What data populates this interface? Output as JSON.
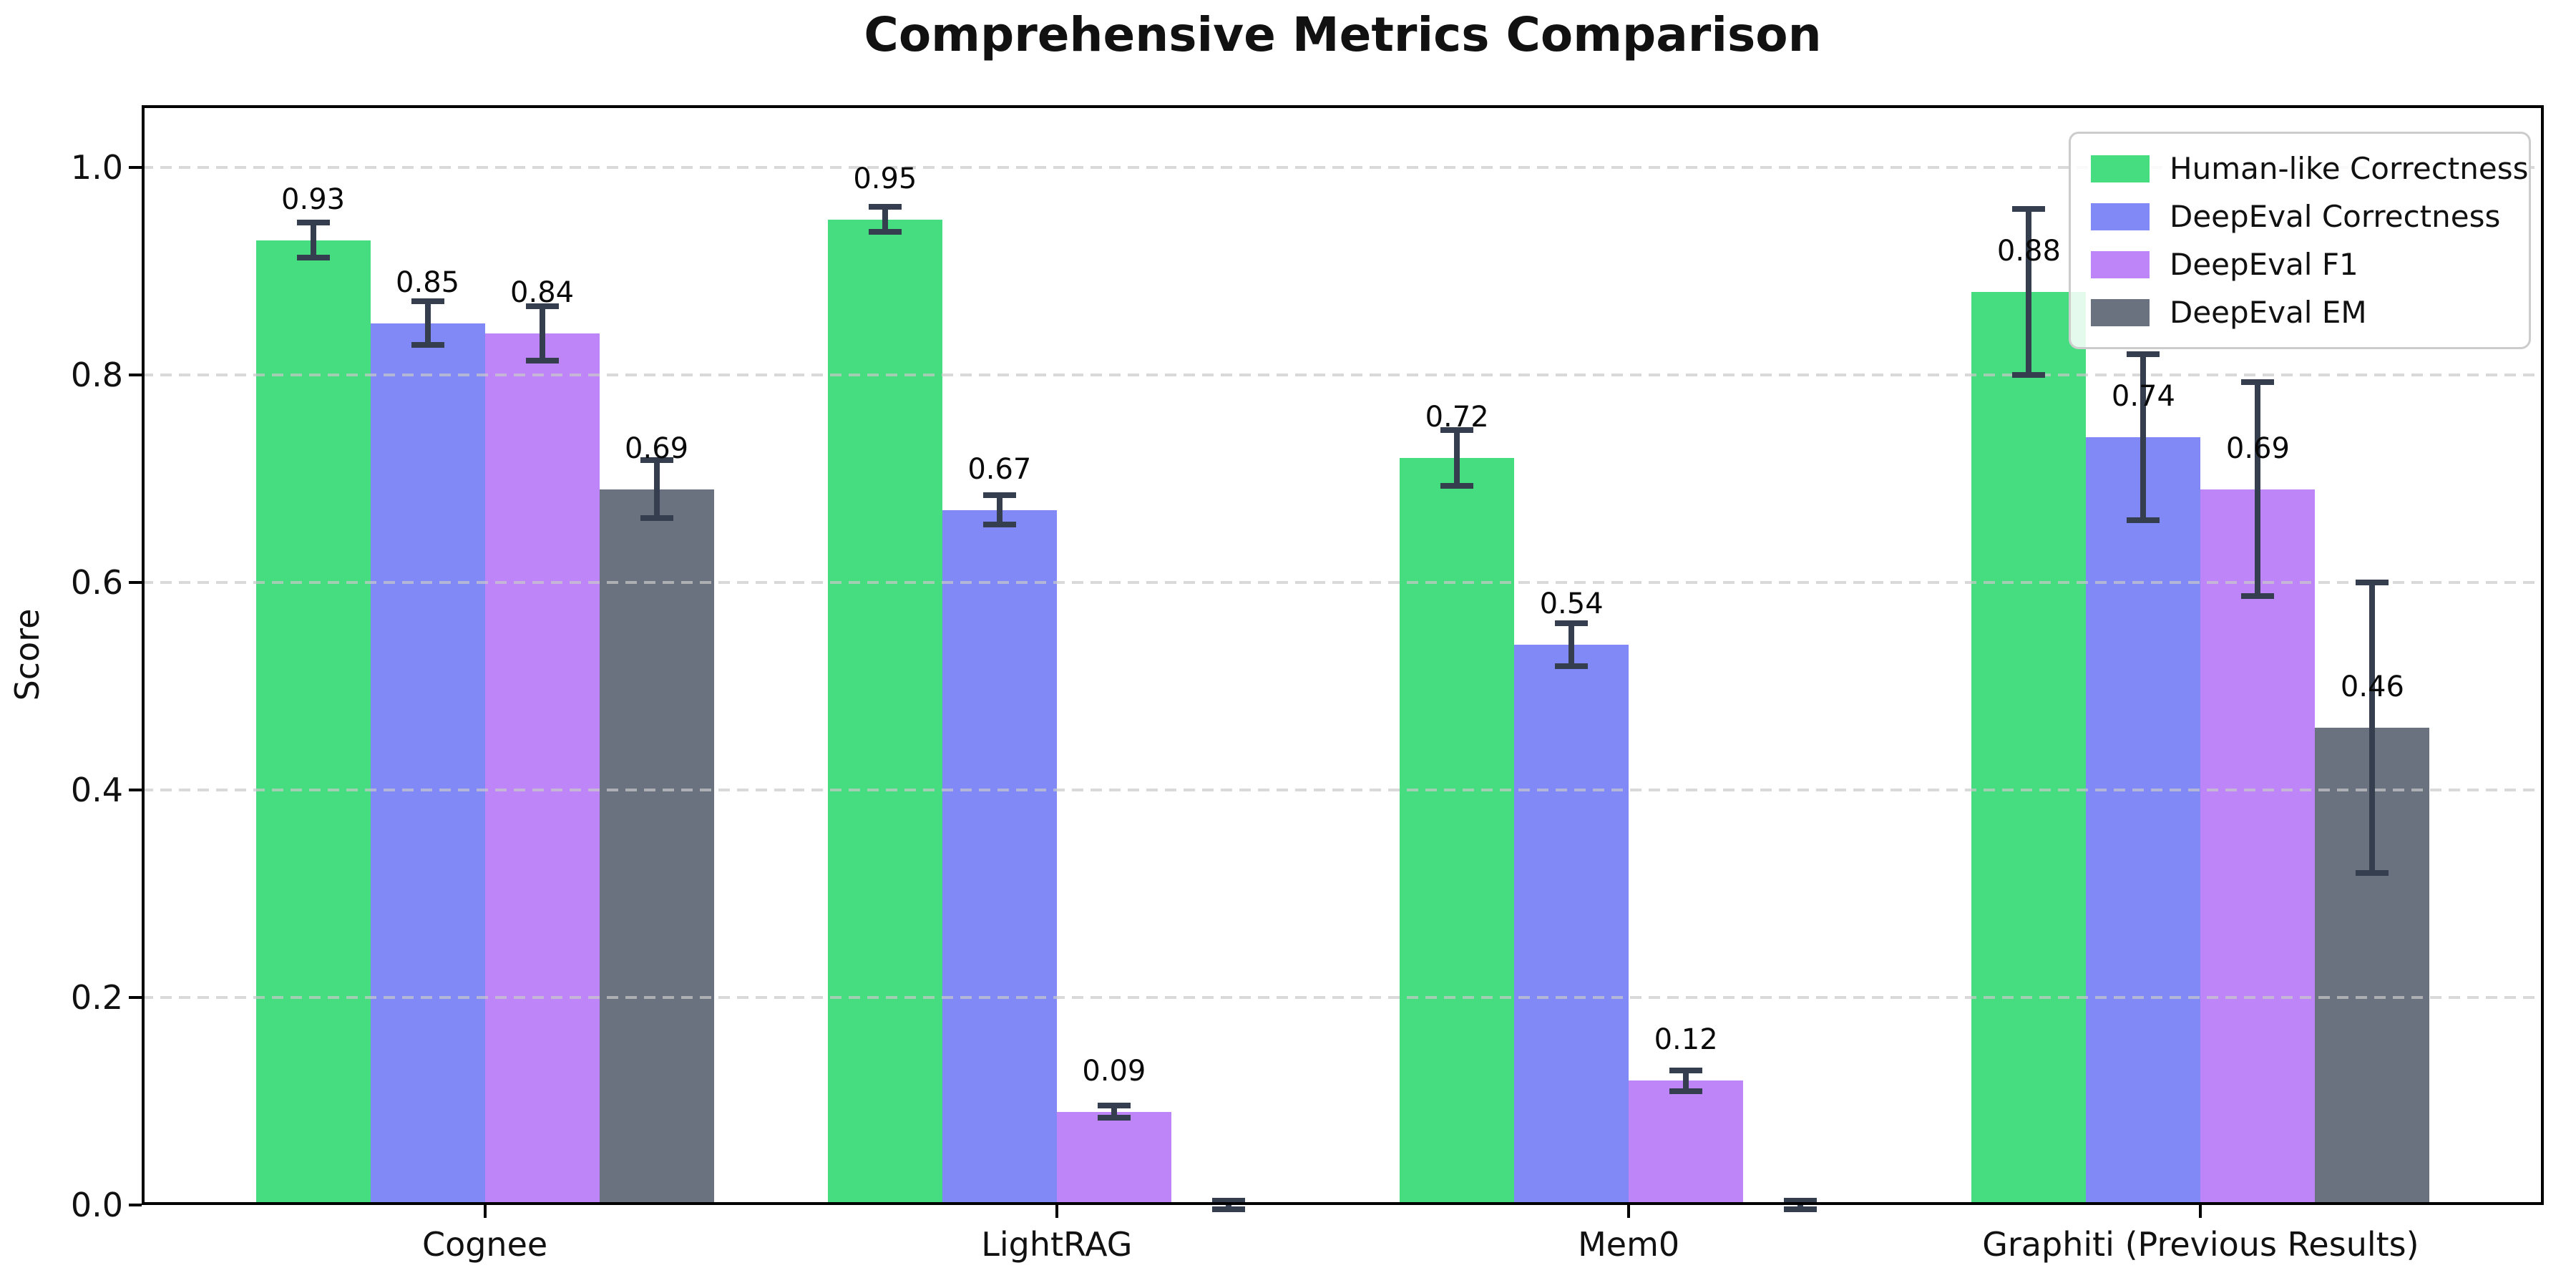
{
  "chart_data": {
    "type": "bar",
    "title": "Comprehensive Metrics Comparison",
    "ylabel": "Score",
    "xlabel": "",
    "categories": [
      "Cognee",
      "LightRAG",
      "Mem0",
      "Graphiti (Previous Results)"
    ],
    "series": [
      {
        "name": "Human-like Correctness",
        "color": "#46dd81",
        "values": [
          0.93,
          0.95,
          0.72,
          0.88
        ],
        "errors": [
          0.017,
          0.012,
          0.027,
          0.08
        ],
        "bar_labels": [
          "0.93",
          "0.95",
          "0.72",
          "0.88"
        ]
      },
      {
        "name": "DeepEval Correctness",
        "color": "#8089f6",
        "values": [
          0.85,
          0.67,
          0.54,
          0.74
        ],
        "errors": [
          0.021,
          0.014,
          0.021,
          0.08
        ],
        "bar_labels": [
          "0.85",
          "0.67",
          "0.54",
          "0.74"
        ]
      },
      {
        "name": "DeepEval F1",
        "color": "#bd85f7",
        "values": [
          0.84,
          0.09,
          0.12,
          0.69
        ],
        "errors": [
          0.026,
          0.006,
          0.01,
          0.103
        ],
        "bar_labels": [
          "0.84",
          "0.09",
          "0.12",
          "0.69"
        ]
      },
      {
        "name": "DeepEval EM",
        "color": "#6a7280",
        "values": [
          0.69,
          0.0,
          0.0,
          0.46
        ],
        "errors": [
          0.028,
          0.004,
          0.004,
          0.14
        ],
        "bar_labels": [
          "0.69",
          "",
          "",
          "0.46"
        ]
      }
    ],
    "yticks": [
      0.0,
      0.2,
      0.4,
      0.6,
      0.8,
      1.0
    ],
    "ytick_labels": [
      "0.0",
      "0.2",
      "0.4",
      "0.6",
      "0.8",
      "1.0"
    ],
    "ylim": [
      0,
      1.06
    ],
    "grid": {
      "axis": "y",
      "style": "dashed",
      "color": "#c9c9c9"
    },
    "legend": {
      "position": "upper right"
    },
    "error_bar_color": "#353e4f",
    "background": "#ffffff"
  }
}
